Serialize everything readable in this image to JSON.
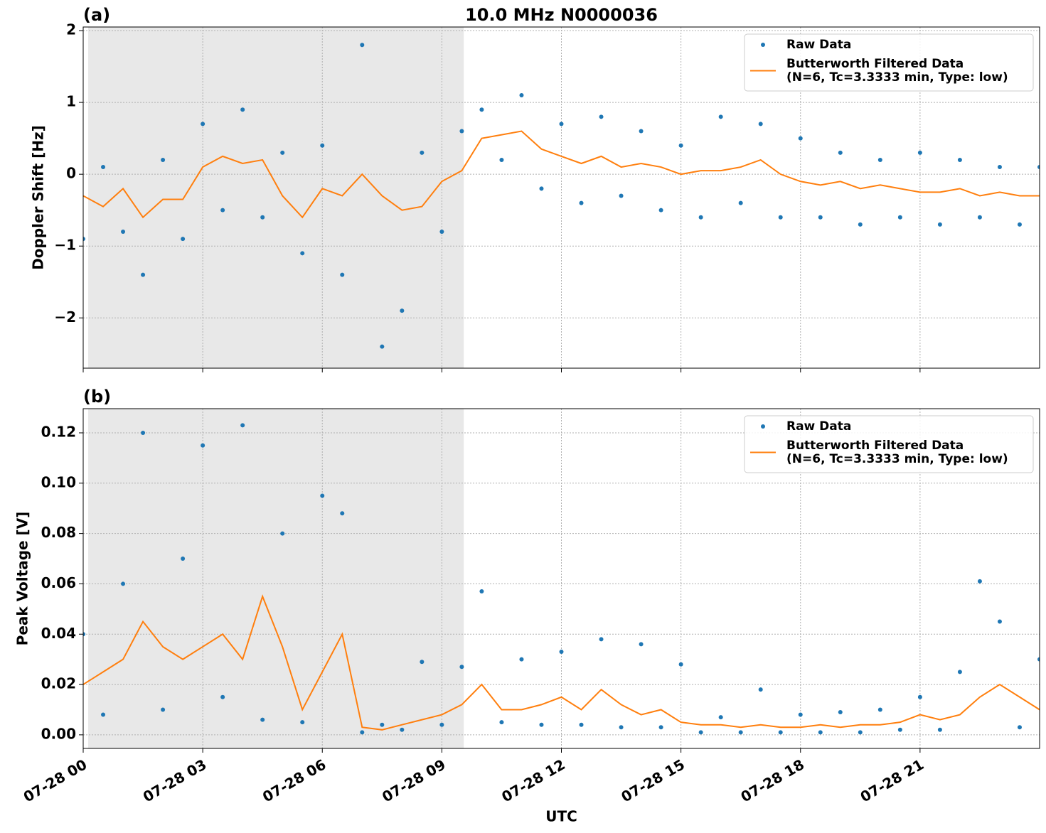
{
  "chart_data": [
    {
      "type": "line",
      "panel_label": "(a)",
      "title": "10.0 MHz N0000036",
      "ylabel": "Doppler Shift [Hz]",
      "x": [
        0,
        0.5,
        1,
        1.5,
        2,
        2.5,
        3,
        3.5,
        4,
        4.5,
        5,
        5.5,
        6,
        6.5,
        7,
        7.5,
        8,
        8.5,
        9,
        9.5,
        10,
        10.5,
        11,
        11.5,
        12,
        12.5,
        13,
        13.5,
        14,
        14.5,
        15,
        15.5,
        16,
        16.5,
        17,
        17.5,
        18,
        18.5,
        19,
        19.5,
        20,
        20.5,
        21,
        21.5,
        22,
        22.5,
        23,
        23.5,
        24
      ],
      "xlim": [
        0,
        24
      ],
      "xticks": [
        0,
        3,
        6,
        9,
        12,
        15,
        18,
        21
      ],
      "ylim": [
        -2.7,
        2.05
      ],
      "yticks": [
        {
          "value": -2,
          "label": "−2"
        },
        {
          "value": -1,
          "label": "−1"
        },
        0,
        1,
        2
      ],
      "grid": true,
      "legend": "upper right",
      "shade_xspan": [
        0.125,
        9.55
      ],
      "shade_color": "#e8e8e8",
      "series": [
        {
          "name": "Raw Data",
          "type": "scatter",
          "color": "#1f77b4",
          "values": [
            -0.9,
            0.1,
            -0.8,
            -1.4,
            0.2,
            -0.9,
            0.7,
            -0.5,
            0.9,
            -0.6,
            0.3,
            -1.1,
            0.4,
            -1.4,
            1.8,
            -2.4,
            -1.9,
            0.3,
            -0.8,
            0.6,
            0.9,
            0.2,
            1.1,
            -0.2,
            0.7,
            -0.4,
            0.8,
            -0.3,
            0.6,
            -0.5,
            0.4,
            -0.6,
            0.8,
            -0.4,
            0.7,
            -0.6,
            0.5,
            -0.6,
            0.3,
            -0.7,
            0.2,
            -0.6,
            0.3,
            -0.7,
            0.2,
            -0.6,
            0.1,
            -0.7,
            0.1
          ]
        },
        {
          "name": "Butterworth Filtered Data\n(N=6, Tc=3.3333 min, Type: low)",
          "type": "line",
          "color": "#ff7f0e",
          "values": [
            -0.3,
            -0.45,
            -0.2,
            -0.6,
            -0.35,
            -0.35,
            0.1,
            0.25,
            0.15,
            0.2,
            -0.3,
            -0.6,
            -0.2,
            -0.3,
            0.0,
            -0.3,
            -0.5,
            -0.45,
            -0.1,
            0.05,
            0.5,
            0.55,
            0.6,
            0.35,
            0.25,
            0.15,
            0.25,
            0.1,
            0.15,
            0.1,
            0.0,
            0.05,
            0.05,
            0.1,
            0.2,
            0.0,
            -0.1,
            -0.15,
            -0.1,
            -0.2,
            -0.15,
            -0.2,
            -0.25,
            -0.25,
            -0.2,
            -0.3,
            -0.25,
            -0.3,
            -0.3
          ]
        }
      ]
    },
    {
      "type": "line",
      "panel_label": "(b)",
      "ylabel": "Peak Voltage [V]",
      "xlabel": "UTC",
      "x": [
        0,
        0.5,
        1,
        1.5,
        2,
        2.5,
        3,
        3.5,
        4,
        4.5,
        5,
        5.5,
        6,
        6.5,
        7,
        7.5,
        8,
        8.5,
        9,
        9.5,
        10,
        10.5,
        11,
        11.5,
        12,
        12.5,
        13,
        13.5,
        14,
        14.5,
        15,
        15.5,
        16,
        16.5,
        17,
        17.5,
        18,
        18.5,
        19,
        19.5,
        20,
        20.5,
        21,
        21.5,
        22,
        22.5,
        23,
        23.5,
        24
      ],
      "xlim": [
        0,
        24
      ],
      "xticks": [
        {
          "value": 0,
          "label": "07-28 00"
        },
        {
          "value": 3,
          "label": "07-28 03"
        },
        {
          "value": 6,
          "label": "07-28 06"
        },
        {
          "value": 9,
          "label": "07-28 09"
        },
        {
          "value": 12,
          "label": "07-28 12"
        },
        {
          "value": 15,
          "label": "07-28 15"
        },
        {
          "value": 18,
          "label": "07-28 18"
        },
        {
          "value": 21,
          "label": "07-28 21"
        }
      ],
      "ylim": [
        -0.0054,
        0.1296
      ],
      "yticks": [
        {
          "value": 0,
          "label": "0.00"
        },
        {
          "value": 0.02,
          "label": "0.02"
        },
        {
          "value": 0.04,
          "label": "0.04"
        },
        {
          "value": 0.06,
          "label": "0.06"
        },
        {
          "value": 0.08,
          "label": "0.08"
        },
        {
          "value": 0.1,
          "label": "0.10"
        },
        {
          "value": 0.12,
          "label": "0.12"
        }
      ],
      "grid": true,
      "legend": "upper right",
      "shade_xspan": [
        0.125,
        9.55
      ],
      "shade_color": "#e8e8e8",
      "series": [
        {
          "name": "Raw Data",
          "type": "scatter",
          "color": "#1f77b4",
          "values": [
            0.04,
            0.008,
            0.06,
            0.12,
            0.01,
            0.07,
            0.115,
            0.015,
            0.123,
            0.006,
            0.08,
            0.005,
            0.095,
            0.088,
            0.001,
            0.004,
            0.002,
            0.029,
            0.004,
            0.027,
            0.057,
            0.005,
            0.03,
            0.004,
            0.033,
            0.004,
            0.038,
            0.003,
            0.036,
            0.003,
            0.028,
            0.001,
            0.007,
            0.001,
            0.018,
            0.001,
            0.008,
            0.001,
            0.009,
            0.001,
            0.01,
            0.002,
            0.015,
            0.002,
            0.025,
            0.061,
            0.045,
            0.003,
            0.03
          ]
        },
        {
          "name": "Butterworth Filtered Data\n(N=6, Tc=3.3333 min, Type: low)",
          "type": "line",
          "color": "#ff7f0e",
          "values": [
            0.02,
            0.025,
            0.03,
            0.045,
            0.035,
            0.03,
            0.035,
            0.04,
            0.03,
            0.055,
            0.035,
            0.01,
            0.025,
            0.04,
            0.003,
            0.002,
            0.004,
            0.006,
            0.008,
            0.012,
            0.02,
            0.01,
            0.01,
            0.012,
            0.015,
            0.01,
            0.018,
            0.012,
            0.008,
            0.01,
            0.005,
            0.004,
            0.004,
            0.003,
            0.004,
            0.003,
            0.003,
            0.004,
            0.003,
            0.004,
            0.004,
            0.005,
            0.008,
            0.006,
            0.008,
            0.015,
            0.02,
            0.015,
            0.01
          ]
        }
      ]
    }
  ]
}
